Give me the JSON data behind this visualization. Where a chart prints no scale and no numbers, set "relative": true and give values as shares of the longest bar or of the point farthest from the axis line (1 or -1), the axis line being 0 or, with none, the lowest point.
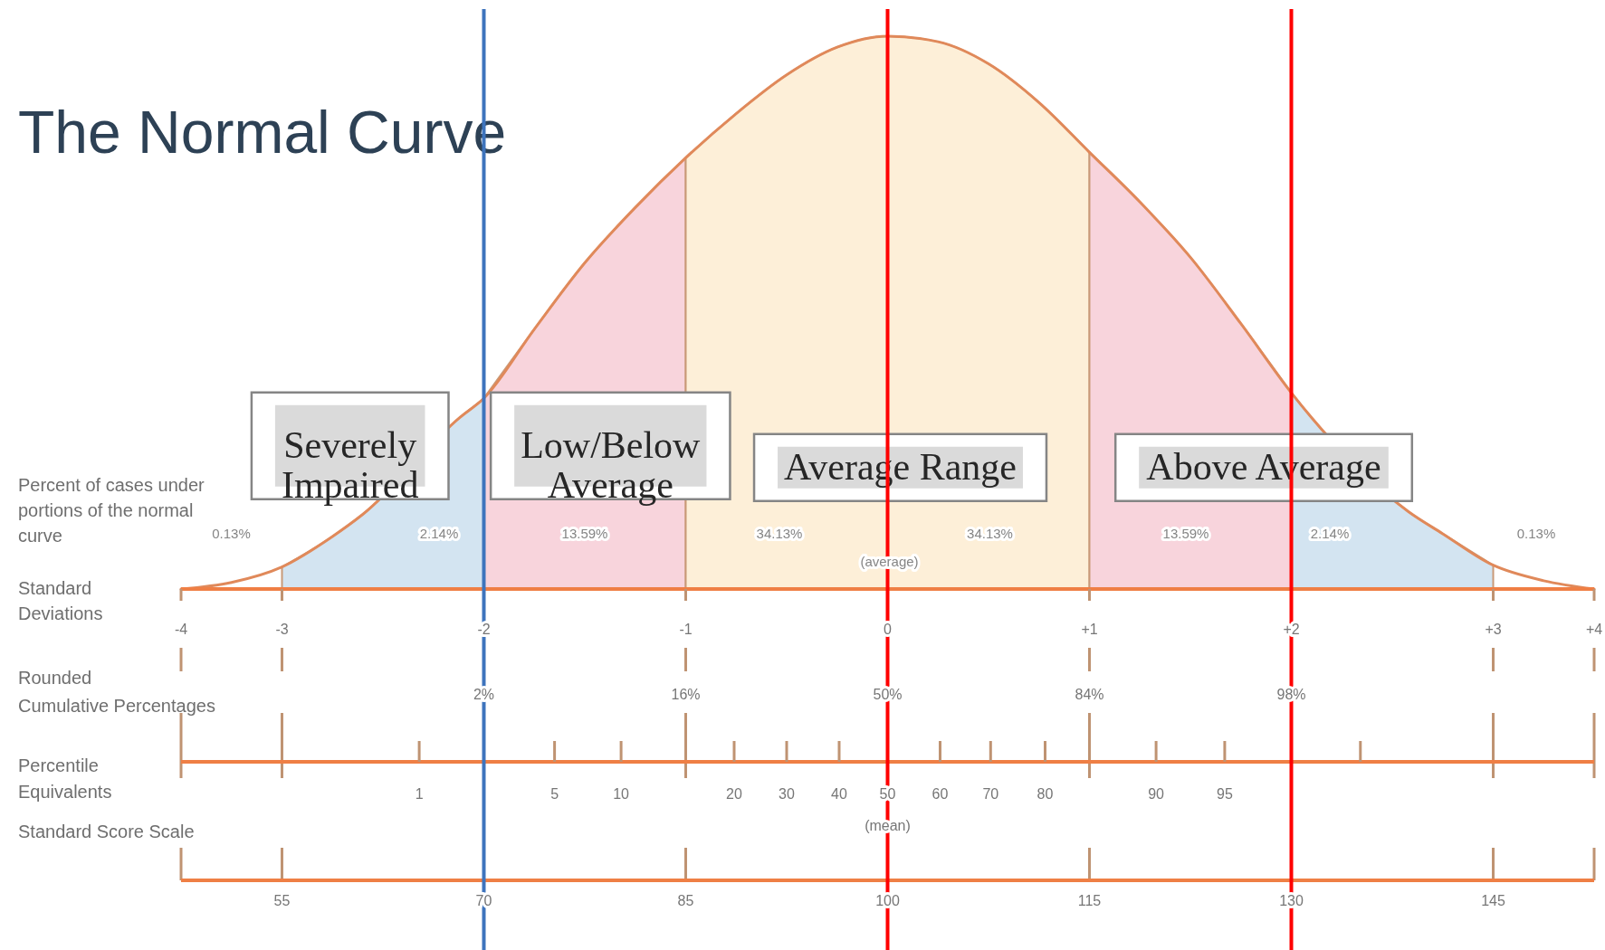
{
  "chart_data": {
    "type": "line",
    "title": "The Normal Curve",
    "ylabel": "Percent of cases under\nportions of the normal\ncurve",
    "xlabel": "Standard\nDeviations",
    "relative": true,
    "xlim": [
      -3.5,
      3.5
    ],
    "xticks": [
      {
        "value": -3.5,
        "label": "-4"
      },
      -3,
      -2,
      -1,
      0,
      {
        "value": 1,
        "label": "+1"
      },
      {
        "value": 2,
        "label": "+2"
      },
      {
        "value": 3,
        "label": "+3"
      },
      {
        "value": 3.5,
        "label": "+4"
      }
    ],
    "series": [
      {
        "type": "area",
        "color": "#d3e4f1",
        "x": [
          -3,
          -2.75,
          -2.6,
          -2.12,
          -2
        ],
        "values": [
          0.04,
          0.095,
          0.135,
          0.31,
          0.345
        ]
      },
      {
        "type": "area",
        "color": "#f8d4dc",
        "x": [
          -2,
          -1.75,
          -1.5,
          -1.25,
          -1
        ],
        "values": [
          0.345,
          0.47,
          0.59,
          0.69,
          0.78
        ]
      },
      {
        "type": "area",
        "color": "#fdefd8",
        "x": [
          -1,
          -0.75,
          -0.5,
          -0.25,
          0,
          0.25,
          0.5,
          0.75,
          1
        ],
        "values": [
          0.78,
          0.86,
          0.93,
          0.98,
          1,
          0.99,
          0.95,
          0.88,
          0.79
        ]
      },
      {
        "type": "area",
        "color": "#f8d4dc",
        "x": [
          1,
          1.25,
          1.5,
          1.75,
          2
        ],
        "values": [
          0.79,
          0.7,
          0.6,
          0.48,
          0.355
        ]
      },
      {
        "type": "area",
        "color": "#d3e4f1",
        "x": [
          2,
          2.1,
          2.58,
          2.75,
          3
        ],
        "values": [
          0.355,
          0.31,
          0.14,
          0.1,
          0.043
        ]
      },
      {
        "type": "line",
        "color": "#e0895a",
        "x": [
          -3.5,
          -3.25,
          -3,
          -2.75,
          -2.6,
          -2.12,
          -2,
          -1.75,
          -1.5,
          -1.25,
          -1,
          -0.75,
          -0.5,
          -0.25,
          0,
          0.25,
          0.5,
          0.75,
          1,
          1.25,
          1.5,
          1.75,
          2,
          2.1,
          2.58,
          2.75,
          3,
          3.25,
          3.5
        ],
        "values": [
          0,
          0.012,
          0.04,
          0.095,
          0.135,
          0.31,
          0.345,
          0.47,
          0.59,
          0.69,
          0.78,
          0.86,
          0.93,
          0.98,
          1,
          0.99,
          0.95,
          0.88,
          0.79,
          0.7,
          0.6,
          0.48,
          0.355,
          0.31,
          0.14,
          0.1,
          0.043,
          0.015,
          0
        ]
      }
    ],
    "ref_lines": [
      {
        "axis": "x",
        "value": -2,
        "color": "#3e74bd"
      },
      {
        "axis": "x",
        "value": 0,
        "color": "#ff0000"
      },
      {
        "axis": "x",
        "value": 2,
        "color": "#ff0000"
      }
    ],
    "annotations": [
      "Severely\nImpaired",
      "Low/Below\nAverage",
      "Average Range",
      "Above Average",
      "0.13%",
      "2.14%",
      "13.59%",
      "34.13%",
      "34.13%",
      "13.59%",
      "2.14%",
      "0.13%",
      "(average)",
      "Rounded\nCumulative Percentages",
      "2%",
      "16%",
      "50%",
      "84%",
      "98%",
      "Percentile\nEquivalents",
      "1",
      "5",
      "10",
      "20",
      "30",
      "40",
      "50",
      "60",
      "70",
      "80",
      "90",
      "95",
      "(mean)",
      "Standard Score Scale",
      "55",
      "70",
      "85",
      "100",
      "115",
      "130",
      "145"
    ]
  }
}
